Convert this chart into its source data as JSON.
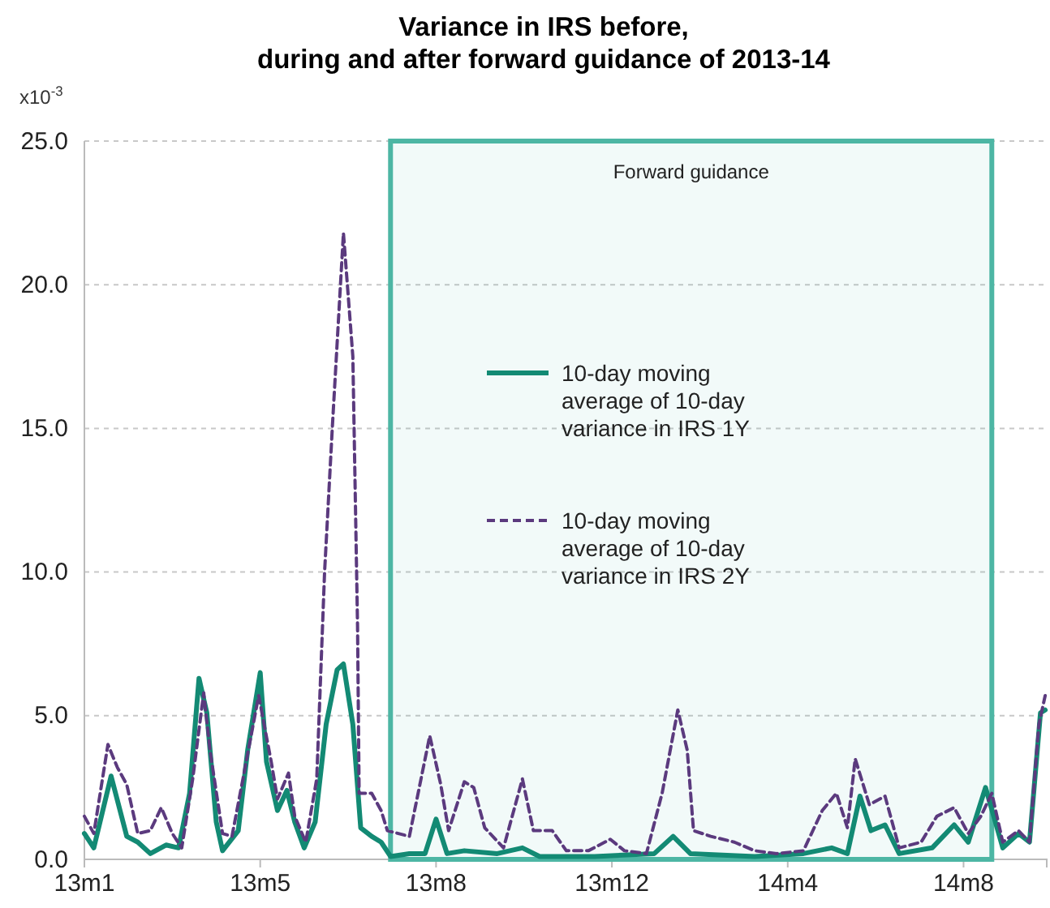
{
  "chart_data": {
    "type": "line",
    "title": "Variance in IRS before,\nduring and after forward guidance of 2013-14",
    "ylabel": "x10$^{-3}$",
    "xlim": [
      "2013-01-18",
      "2014-09-23"
    ],
    "xticks": [
      {
        "value": "2013-01-18",
        "label": "13m1"
      },
      {
        "value": "2013-05-10",
        "label": "13m5"
      },
      {
        "value": "2013-08-30",
        "label": "13m8"
      },
      {
        "value": "2013-12-20",
        "label": "13m12"
      },
      {
        "value": "2014-04-11",
        "label": "14m4"
      },
      {
        "value": "2014-08-01",
        "label": "14m8"
      }
    ],
    "ylim": [
      0,
      25
    ],
    "yticks": [
      {
        "value": 0,
        "label": "0.0"
      },
      {
        "value": 5,
        "label": "5.0"
      },
      {
        "value": 10,
        "label": "10.0"
      },
      {
        "value": 15,
        "label": "15.0"
      },
      {
        "value": 20,
        "label": "20.0"
      },
      {
        "value": 25,
        "label": "25.0"
      }
    ],
    "grid": "y",
    "legend": "center",
    "marker": "none",
    "bands": [
      {
        "axis": "x",
        "from": "2013-08-01",
        "to": "2014-08-19",
        "label": "Forward guidance",
        "color": "#4db6a4"
      }
    ],
    "series": [
      {
        "name": "10-day moving average of 10-day variance in IRS 1Y",
        "color": "#138a74",
        "line_style": "solid",
        "x": [
          "2013-01-18",
          "2013-01-24",
          "2013-02-04",
          "2013-02-14",
          "2013-02-21",
          "2013-03-01",
          "2013-03-11",
          "2013-03-19",
          "2013-03-26",
          "2013-04-01",
          "2013-04-06",
          "2013-04-12",
          "2013-04-16",
          "2013-04-26",
          "2013-05-02",
          "2013-05-10",
          "2013-05-14",
          "2013-05-21",
          "2013-05-27",
          "2013-06-01",
          "2013-06-07",
          "2013-06-14",
          "2013-06-21",
          "2013-06-28",
          "2013-07-02",
          "2013-07-08",
          "2013-07-13",
          "2013-07-20",
          "2013-07-26",
          "2013-08-01",
          "2013-08-13",
          "2013-08-23",
          "2013-08-30",
          "2013-09-06",
          "2013-09-17",
          "2013-10-08",
          "2013-10-24",
          "2013-11-04",
          "2013-12-09",
          "2014-01-16",
          "2014-01-28",
          "2014-02-08",
          "2014-03-21",
          "2014-04-21",
          "2014-05-09",
          "2014-05-19",
          "2014-05-27",
          "2014-06-03",
          "2014-06-12",
          "2014-06-21",
          "2014-07-12",
          "2014-07-26",
          "2014-08-04",
          "2014-08-15",
          "2014-08-26",
          "2014-09-05",
          "2014-09-12",
          "2014-09-19",
          "2014-09-22"
        ],
        "values": [
          0.9,
          0.4,
          2.9,
          0.8,
          0.6,
          0.2,
          0.5,
          0.4,
          2.3,
          6.3,
          5.1,
          1.3,
          0.3,
          1.0,
          3.8,
          6.5,
          3.4,
          1.7,
          2.4,
          1.3,
          0.4,
          1.3,
          4.7,
          6.6,
          6.8,
          4.7,
          1.1,
          0.8,
          0.6,
          0.1,
          0.2,
          0.2,
          1.4,
          0.2,
          0.3,
          0.2,
          0.4,
          0.1,
          0.1,
          0.2,
          0.8,
          0.2,
          0.1,
          0.2,
          0.4,
          0.2,
          2.2,
          1.0,
          1.2,
          0.2,
          0.4,
          1.2,
          0.6,
          2.5,
          0.4,
          0.9,
          0.6,
          5.1,
          5.2
        ]
      },
      {
        "name": "10-day moving average of 10-day variance in IRS 2Y",
        "color": "#5b3a7e",
        "line_style": "dashed",
        "x": [
          "2013-01-18",
          "2013-01-24",
          "2013-02-02",
          "2013-02-08",
          "2013-02-14",
          "2013-02-21",
          "2013-03-01",
          "2013-03-08",
          "2013-03-15",
          "2013-03-21",
          "2013-03-28",
          "2013-04-04",
          "2013-04-08",
          "2013-04-16",
          "2013-04-22",
          "2013-04-29",
          "2013-05-09",
          "2013-05-17",
          "2013-05-21",
          "2013-05-28",
          "2013-06-01",
          "2013-06-08",
          "2013-06-15",
          "2013-06-20",
          "2013-06-25",
          "2013-07-02",
          "2013-07-08",
          "2013-07-11",
          "2013-07-12",
          "2013-07-20",
          "2013-07-26",
          "2013-07-30",
          "2013-08-06",
          "2013-08-13",
          "2013-08-26",
          "2013-09-02",
          "2013-09-07",
          "2013-09-17",
          "2013-09-23",
          "2013-09-30",
          "2013-10-12",
          "2013-10-24",
          "2013-10-31",
          "2013-11-12",
          "2013-11-21",
          "2013-12-05",
          "2013-12-19",
          "2013-12-28",
          "2014-01-11",
          "2014-01-21",
          "2014-01-31",
          "2014-02-06",
          "2014-02-10",
          "2014-02-21",
          "2014-03-08",
          "2014-03-21",
          "2014-04-04",
          "2014-04-21",
          "2014-05-03",
          "2014-05-12",
          "2014-05-19",
          "2014-05-24",
          "2014-06-02",
          "2014-06-12",
          "2014-06-21",
          "2014-07-05",
          "2014-07-15",
          "2014-07-26",
          "2014-08-04",
          "2014-08-12",
          "2014-08-19",
          "2014-08-26",
          "2014-09-05",
          "2014-09-12",
          "2014-09-18",
          "2014-09-22"
        ],
        "values": [
          1.5,
          0.9,
          4.0,
          3.2,
          2.6,
          0.9,
          1.0,
          1.8,
          0.9,
          0.4,
          2.8,
          5.8,
          3.8,
          0.9,
          0.8,
          2.8,
          5.7,
          3.4,
          2.1,
          3.0,
          1.5,
          0.6,
          2.8,
          10.0,
          15.1,
          21.8,
          17.5,
          8.1,
          2.3,
          2.3,
          1.7,
          1.0,
          0.9,
          0.8,
          4.3,
          2.6,
          1.0,
          2.7,
          2.5,
          1.1,
          0.4,
          2.8,
          1.0,
          1.0,
          0.3,
          0.3,
          0.7,
          0.3,
          0.2,
          2.3,
          5.2,
          3.8,
          1.0,
          0.8,
          0.6,
          0.3,
          0.2,
          0.3,
          1.7,
          2.3,
          1.1,
          3.5,
          1.9,
          2.2,
          0.4,
          0.6,
          1.5,
          1.8,
          0.9,
          1.5,
          2.3,
          0.6,
          1.0,
          0.6,
          4.7,
          5.7
        ]
      }
    ]
  }
}
